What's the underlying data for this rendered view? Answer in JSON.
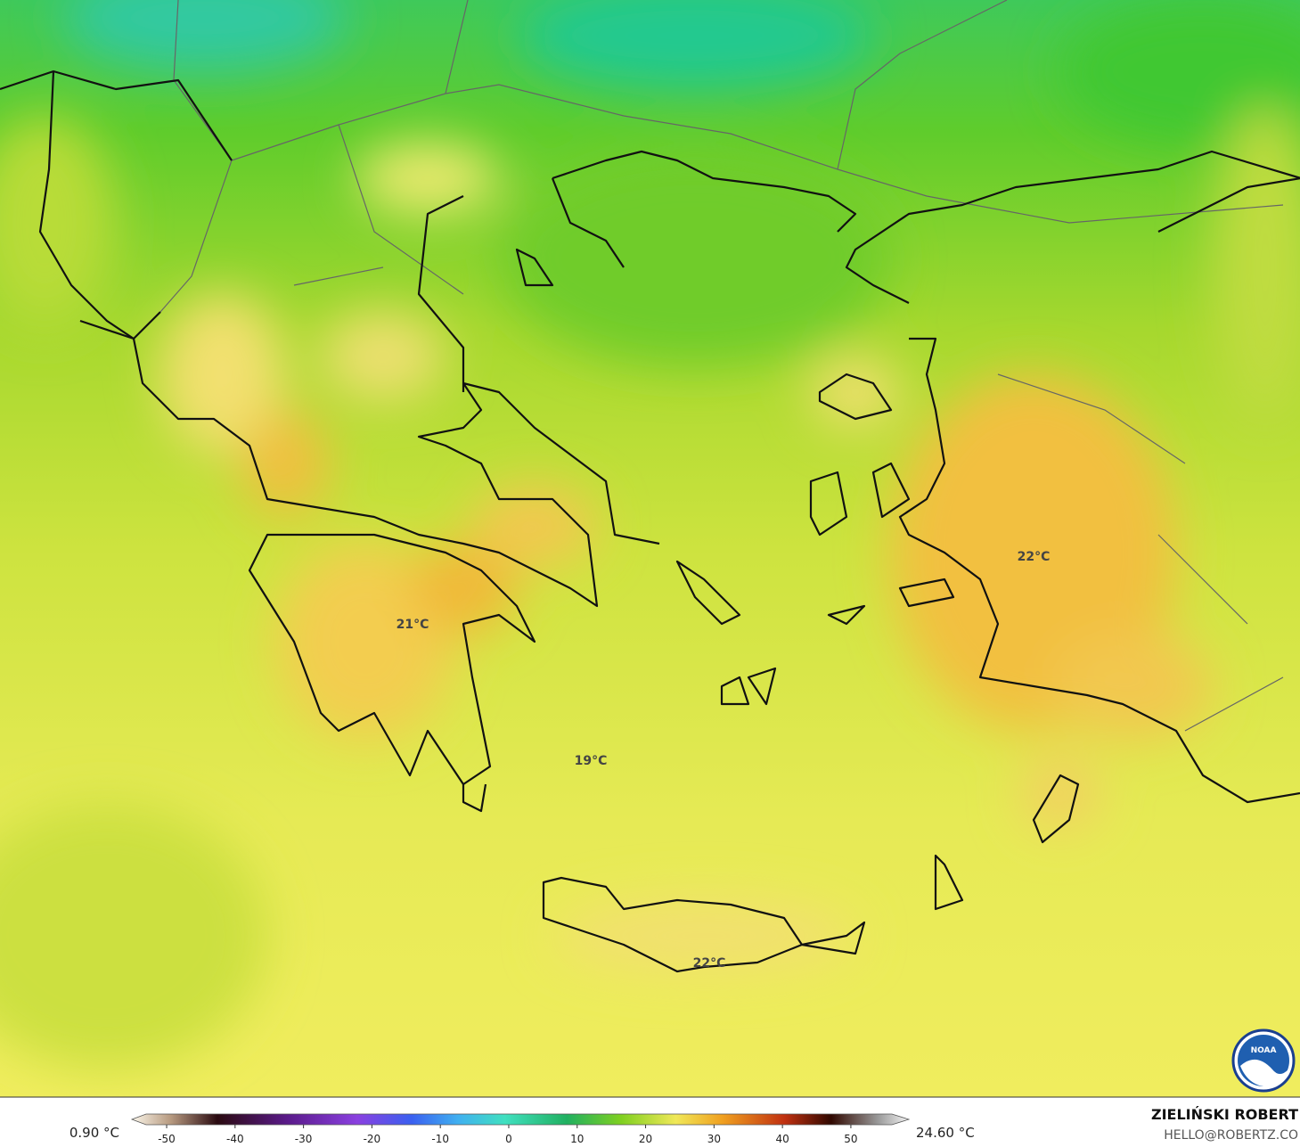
{
  "map": {
    "labels": [
      {
        "text": "22°C"
      },
      {
        "text": "21°C"
      },
      {
        "text": "19°C"
      },
      {
        "text": "22°C"
      }
    ]
  },
  "legend": {
    "min": "0.90 °C",
    "max": "24.60 °C",
    "ticks": [
      -50,
      -40,
      -30,
      -20,
      -10,
      0,
      10,
      20,
      30,
      40,
      50
    ],
    "limits": [
      -53,
      56
    ]
  },
  "credits": {
    "author": "ZIELIŃSKI ROBERT",
    "email": "HELLO@ROBERTZ.CO",
    "logo": "NOAA"
  }
}
